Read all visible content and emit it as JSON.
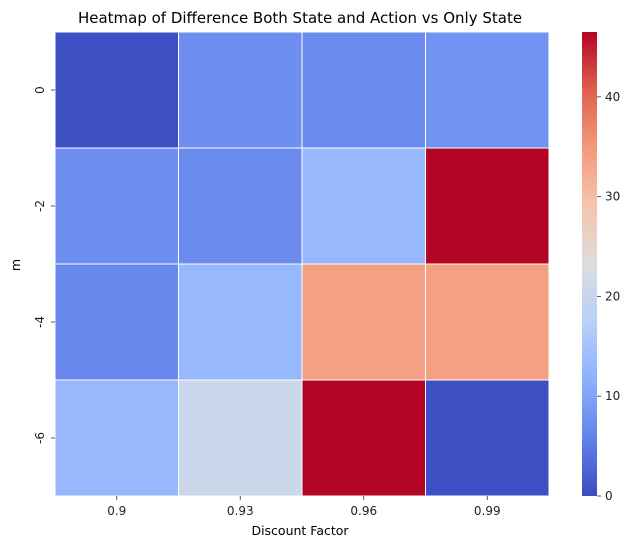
{
  "chart_data": {
    "type": "heatmap",
    "title": "Heatmap of Difference Both State and Action vs Only State",
    "xlabel": "Discount Factor",
    "ylabel": "m",
    "x_categories": [
      "0.9",
      "0.93",
      "0.96",
      "0.99"
    ],
    "y_categories": [
      "0",
      "-2",
      "-4",
      "-6"
    ],
    "values": [
      [
        0.3,
        7.5,
        7.0,
        8.0
      ],
      [
        7.5,
        7.0,
        13.0,
        46.5
      ],
      [
        6.5,
        13.0,
        34.0,
        34.0
      ],
      [
        13.0,
        20.5,
        46.5,
        0.3
      ]
    ],
    "colormap": "coolwarm",
    "vmin": 0,
    "vmax": 46.5,
    "colorbar_ticks": [
      "0",
      "10",
      "20",
      "30",
      "40"
    ],
    "colorbar_tick_values": [
      0,
      10,
      20,
      30,
      40
    ],
    "cell_border_color": "#ffffff",
    "grid": false
  }
}
